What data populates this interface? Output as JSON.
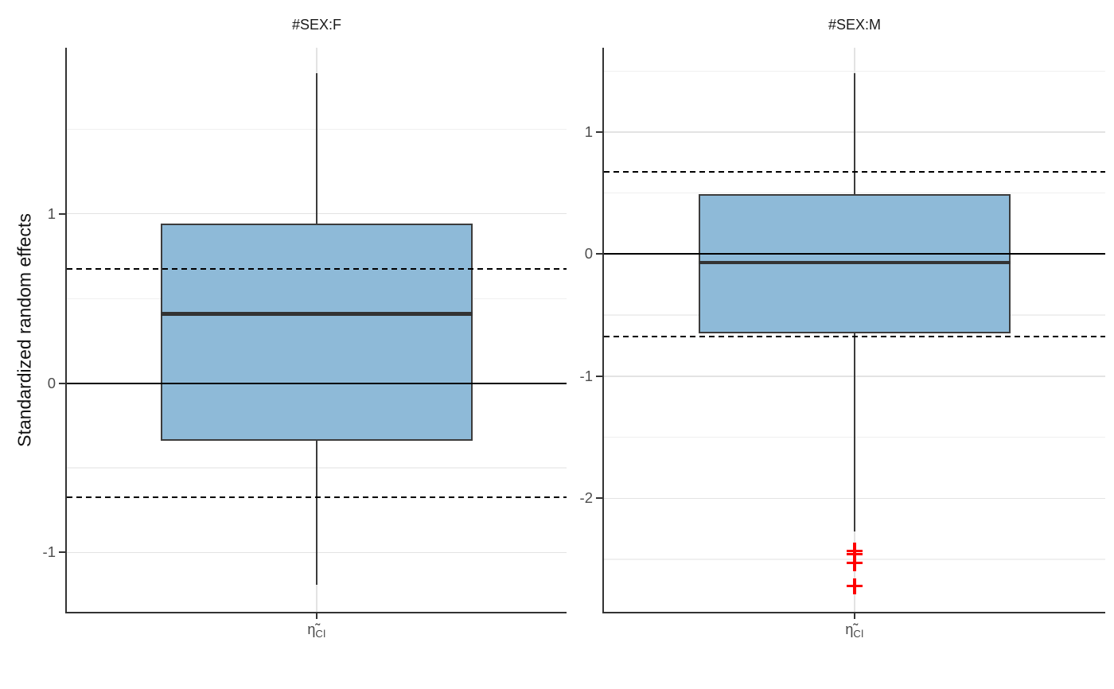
{
  "y_axis_title": "Standardized random effects",
  "x_tick_label": {
    "main": "η̃",
    "sub": "Cl"
  },
  "colors": {
    "box_fill": "#8ebad8",
    "box_border": "#3c3c3c",
    "median": "#333333",
    "reference_line": "#000000",
    "outlier": "#fe0000",
    "grid_major": "#e3e3e3",
    "grid_minor": "#f0f0f0",
    "axis_line": "#333333",
    "tick_label": "#4d4d4d",
    "title_text": "#1a1a1a",
    "background": "#ffffff"
  },
  "chart_data": [
    {
      "type": "boxplot",
      "facet": "#SEX:F",
      "x_category": "eta_Cl",
      "stats": {
        "whisker_min": -1.19,
        "q1": -0.34,
        "median": 0.41,
        "q3": 0.94,
        "whisker_max": 1.83
      },
      "outliers": [],
      "reference_lines": {
        "solid": [
          0
        ],
        "dashed": [
          0.675,
          -0.675
        ]
      },
      "y_ticks": [
        1,
        0,
        -1
      ],
      "y_minor_ticks": [
        1.5,
        0.5,
        -0.5
      ],
      "ylim": [
        -1.35,
        1.98
      ],
      "grid": true,
      "legend": "none"
    },
    {
      "type": "boxplot",
      "facet": "#SEX:M",
      "x_category": "eta_Cl",
      "stats": {
        "whisker_min": -2.27,
        "q1": -0.65,
        "median": -0.07,
        "q3": 0.49,
        "whisker_max": 1.48
      },
      "outliers": [
        -2.43,
        -2.46,
        -2.53,
        -2.72
      ],
      "reference_lines": {
        "solid": [
          0
        ],
        "dashed": [
          0.675,
          -0.675
        ]
      },
      "y_ticks": [
        1,
        0,
        -1,
        -2
      ],
      "y_minor_ticks": [
        1.5,
        0.5,
        -0.5,
        -1.5,
        -2.5
      ],
      "ylim": [
        -2.93,
        1.69
      ],
      "grid": true,
      "legend": "none"
    }
  ]
}
